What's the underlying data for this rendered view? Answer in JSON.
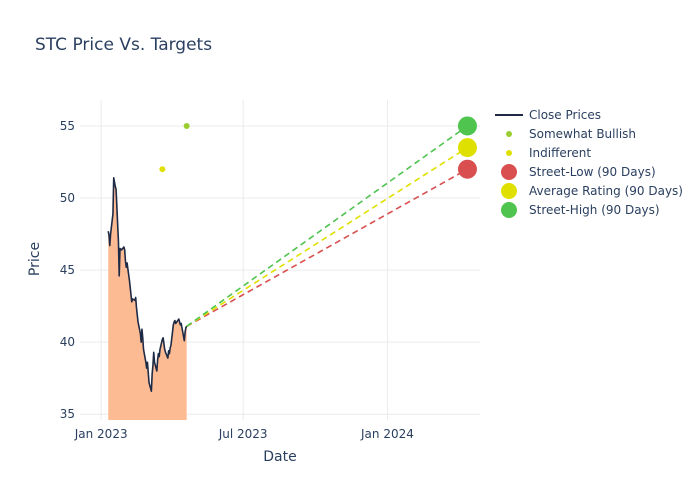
{
  "chart_data": {
    "type": "line",
    "title": "STC Price Vs. Targets",
    "xlabel": "Date",
    "ylabel": "Price",
    "xlim": [
      "2022-12-05",
      "2024-04-28"
    ],
    "ylim": [
      34.6,
      56.8
    ],
    "x_ticks": [
      {
        "date": "2023-01-01",
        "label": "Jan 2023"
      },
      {
        "date": "2023-07-01",
        "label": "Jul 2023"
      },
      {
        "date": "2024-01-01",
        "label": "Jan 2024"
      }
    ],
    "y_ticks": [
      35,
      40,
      45,
      50,
      55
    ],
    "grid": true,
    "legend_position": "right",
    "colors": {
      "close": "#1f2a44",
      "area": "#fdbb94",
      "somewhat_bullish": "#9acd32",
      "indifferent": "#e0e000",
      "street_low": "#d94f4f",
      "average": "#e0e000",
      "street_high": "#4fc44f",
      "grid": "#ebebeb"
    },
    "series": [
      {
        "name": "Close Prices",
        "kind": "line-area",
        "points": [
          [
            "2023-01-10",
            47.7
          ],
          [
            "2023-01-11",
            47.4
          ],
          [
            "2023-01-12",
            46.7
          ],
          [
            "2023-01-13",
            47.5
          ],
          [
            "2023-01-16",
            48.9
          ],
          [
            "2023-01-17",
            51.4
          ],
          [
            "2023-01-18",
            51.1
          ],
          [
            "2023-01-19",
            50.8
          ],
          [
            "2023-01-20",
            50.6
          ],
          [
            "2023-01-23",
            47.0
          ],
          [
            "2023-01-24",
            44.6
          ],
          [
            "2023-01-25",
            46.5
          ],
          [
            "2023-01-27",
            46.4
          ],
          [
            "2023-01-30",
            46.6
          ],
          [
            "2023-01-31",
            46.4
          ],
          [
            "2023-02-01",
            45.6
          ],
          [
            "2023-02-02",
            45.2
          ],
          [
            "2023-02-03",
            45.5
          ],
          [
            "2023-02-06",
            44.3
          ],
          [
            "2023-02-07",
            43.8
          ],
          [
            "2023-02-08",
            43.3
          ],
          [
            "2023-02-09",
            42.8
          ],
          [
            "2023-02-10",
            43.0
          ],
          [
            "2023-02-13",
            42.9
          ],
          [
            "2023-02-14",
            43.1
          ],
          [
            "2023-02-15",
            42.4
          ],
          [
            "2023-02-17",
            41.4
          ],
          [
            "2023-02-20",
            40.6
          ],
          [
            "2023-02-21",
            40.0
          ],
          [
            "2023-02-22",
            40.9
          ],
          [
            "2023-02-23",
            40.3
          ],
          [
            "2023-02-24",
            39.5
          ],
          [
            "2023-02-27",
            38.6
          ],
          [
            "2023-02-28",
            38.2
          ],
          [
            "2023-03-01",
            38.6
          ],
          [
            "2023-03-02",
            37.9
          ],
          [
            "2023-03-03",
            37.2
          ],
          [
            "2023-03-06",
            36.6
          ],
          [
            "2023-03-07",
            37.8
          ],
          [
            "2023-03-08",
            38.4
          ],
          [
            "2023-03-09",
            39.3
          ],
          [
            "2023-03-10",
            38.6
          ],
          [
            "2023-03-13",
            38.0
          ],
          [
            "2023-03-14",
            38.8
          ],
          [
            "2023-03-15",
            39.2
          ],
          [
            "2023-03-16",
            39.0
          ],
          [
            "2023-03-17",
            39.5
          ],
          [
            "2023-03-20",
            40.2
          ],
          [
            "2023-03-21",
            40.3
          ],
          [
            "2023-03-22",
            39.9
          ],
          [
            "2023-03-23",
            39.5
          ],
          [
            "2023-03-24",
            39.3
          ],
          [
            "2023-03-27",
            38.9
          ],
          [
            "2023-03-28",
            39.4
          ],
          [
            "2023-03-29",
            39.2
          ],
          [
            "2023-03-30",
            39.6
          ],
          [
            "2023-03-31",
            39.8
          ],
          [
            "2023-04-03",
            41.2
          ],
          [
            "2023-04-04",
            41.4
          ],
          [
            "2023-04-05",
            41.5
          ],
          [
            "2023-04-06",
            41.3
          ],
          [
            "2023-04-10",
            41.6
          ],
          [
            "2023-04-11",
            41.4
          ],
          [
            "2023-04-12",
            41.2
          ],
          [
            "2023-04-13",
            41.3
          ],
          [
            "2023-04-14",
            41.0
          ],
          [
            "2023-04-17",
            40.1
          ],
          [
            "2023-04-18",
            40.7
          ],
          [
            "2023-04-19",
            41.0
          ],
          [
            "2023-04-20",
            41.1
          ]
        ]
      },
      {
        "name": "Somewhat Bullish",
        "kind": "points",
        "points": [
          [
            "2023-04-20",
            55.0
          ]
        ]
      },
      {
        "name": "Indifferent",
        "kind": "points",
        "points": [
          [
            "2023-03-20",
            52.0
          ]
        ]
      },
      {
        "name": "Street-Low (90 Days)",
        "kind": "target",
        "from": [
          "2023-04-20",
          41.1
        ],
        "to": [
          "2024-04-12",
          52.0
        ]
      },
      {
        "name": "Average Rating (90 Days)",
        "kind": "target",
        "from": [
          "2023-04-20",
          41.1
        ],
        "to": [
          "2024-04-12",
          53.5
        ]
      },
      {
        "name": "Street-High (90 Days)",
        "kind": "target",
        "from": [
          "2023-04-20",
          41.1
        ],
        "to": [
          "2024-04-12",
          55.0
        ]
      }
    ]
  }
}
